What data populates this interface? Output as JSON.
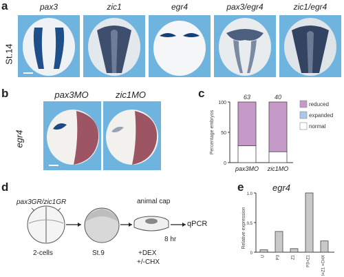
{
  "panel_a": {
    "letter": "a",
    "stage": "St.14",
    "columns": [
      "pax3",
      "zic1",
      "egr4",
      "pax3/egr4",
      "zic1/egr4"
    ]
  },
  "panel_b": {
    "letter": "b",
    "columns": [
      "pax3MO",
      "zic1MO"
    ],
    "row_label": "egr4"
  },
  "panel_c": {
    "letter": "c",
    "ylabel": "Percentage embryos",
    "n_labels": [
      "63",
      "40"
    ],
    "legend": [
      "reduced",
      "expanded",
      "normal"
    ],
    "colors": {
      "reduced": "#c59ac8",
      "expanded": "#a9c9e8",
      "normal": "#ffffff"
    }
  },
  "panel_d": {
    "letter": "d",
    "injection": "pax3GR/zic1GR",
    "stage1": "2-cells",
    "stage2": "St.9",
    "animal_cap": "animal cap",
    "treatment1": "+DEX",
    "treatment2": "+/-CHX",
    "time": "8 hr",
    "readout": "qPCR"
  },
  "panel_e": {
    "letter": "e",
    "title": "egr4",
    "ylabel": "Relative expression"
  },
  "chart_data": [
    {
      "type": "bar",
      "title": "",
      "xlabel": "",
      "ylabel": "Percentage embryos",
      "categories": [
        "pax3MO",
        "zic1MO"
      ],
      "ylim": [
        0,
        100
      ],
      "yticks": [
        "0",
        "50",
        "100"
      ],
      "stacked": true,
      "series": [
        {
          "name": "normal",
          "values": [
            28,
            18
          ]
        },
        {
          "name": "expanded",
          "values": [
            0,
            0
          ]
        },
        {
          "name": "reduced",
          "values": [
            72,
            82
          ]
        }
      ],
      "annotations": [
        "63",
        "40"
      ],
      "legend": "right"
    },
    {
      "type": "bar",
      "title": "egr4",
      "xlabel": "",
      "ylabel": "Relative expression",
      "categories": [
        "U",
        "P3",
        "Z1",
        "P3+Z1",
        "P3+Z1 +CHX"
      ],
      "values": [
        0.04,
        0.35,
        0.06,
        1.0,
        0.19
      ],
      "ylim": [
        0,
        1.0
      ],
      "yticks": [
        "0",
        "0.5",
        "1.0"
      ]
    }
  ]
}
